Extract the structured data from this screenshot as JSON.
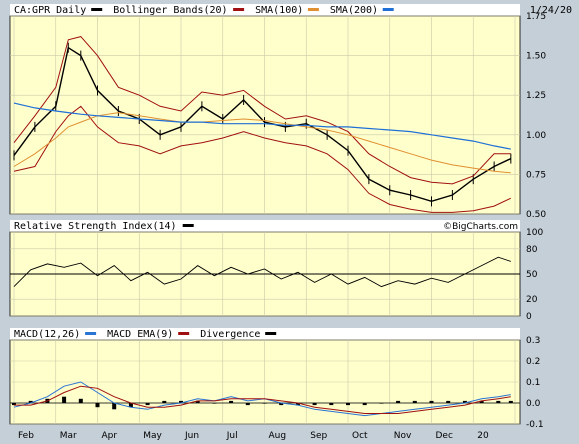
{
  "date": "1/24/20",
  "watermark": "©BigCharts.com",
  "colors": {
    "price": "#000000",
    "bollinger": "#a01010",
    "sma100": "#e09030",
    "sma200": "#1f6fd6",
    "rsi": "#000000",
    "macd": "#2a74d4",
    "macd_ema": "#a01010",
    "divergence": "#000000"
  },
  "legend_main": [
    {
      "label": "CA:GPR Daily",
      "color": "#000000"
    },
    {
      "label": "Bollinger Bands(20)",
      "color": "#a01010"
    },
    {
      "label": "SMA(100)",
      "color": "#e09030"
    },
    {
      "label": "SMA(200)",
      "color": "#1f6fd6"
    }
  ],
  "legend_rsi": [
    {
      "label": "Relative Strength Index(14)",
      "color": "#000000"
    }
  ],
  "legend_macd": [
    {
      "label": "MACD(12,26)",
      "color": "#2a74d4"
    },
    {
      "label": "MACD EMA(9)",
      "color": "#a01010"
    },
    {
      "label": "Divergence",
      "color": "#000000"
    }
  ],
  "x_labels": [
    "Feb",
    "Mar",
    "Apr",
    "May",
    "Jun",
    "Jul",
    "Aug",
    "Sep",
    "Oct",
    "Nov",
    "Dec",
    "20"
  ],
  "chart_data": [
    {
      "type": "line",
      "name": "price",
      "ylim": [
        0.5,
        1.75
      ],
      "yticks": [
        "1.75",
        "1.50",
        "1.25",
        "1.00",
        "0.75",
        "0.50"
      ],
      "ytick_values": [
        1.75,
        1.5,
        1.25,
        1.0,
        0.75,
        0.5
      ],
      "x_month_index": [
        0,
        0.5,
        1,
        1.3,
        1.6,
        2,
        2.5,
        3,
        3.5,
        4,
        4.5,
        5,
        5.5,
        6,
        6.5,
        7,
        7.5,
        8,
        8.5,
        9,
        9.5,
        10,
        10.5,
        11,
        11.5,
        11.9
      ],
      "series": [
        {
          "name": "CA:GPR Daily",
          "values": [
            0.87,
            1.05,
            1.18,
            1.55,
            1.5,
            1.28,
            1.15,
            1.1,
            1.0,
            1.05,
            1.18,
            1.1,
            1.22,
            1.08,
            1.05,
            1.07,
            1.0,
            0.9,
            0.72,
            0.65,
            0.62,
            0.58,
            0.62,
            0.72,
            0.8,
            0.85
          ]
        },
        {
          "name": "Bollinger upper",
          "values": [
            0.95,
            1.12,
            1.3,
            1.6,
            1.62,
            1.5,
            1.3,
            1.25,
            1.18,
            1.15,
            1.27,
            1.25,
            1.28,
            1.18,
            1.1,
            1.12,
            1.08,
            1.02,
            0.88,
            0.8,
            0.73,
            0.7,
            0.69,
            0.74,
            0.88,
            0.88
          ]
        },
        {
          "name": "Bollinger lower",
          "values": [
            0.77,
            0.8,
            1.02,
            1.12,
            1.18,
            1.05,
            0.95,
            0.93,
            0.88,
            0.93,
            0.95,
            0.98,
            1.02,
            0.98,
            0.95,
            0.93,
            0.88,
            0.78,
            0.63,
            0.56,
            0.53,
            0.51,
            0.51,
            0.52,
            0.55,
            0.6
          ]
        },
        {
          "name": "SMA(100)",
          "values": [
            0.8,
            0.88,
            0.98,
            1.05,
            1.08,
            1.12,
            1.14,
            1.12,
            1.1,
            1.08,
            1.08,
            1.09,
            1.1,
            1.09,
            1.07,
            1.05,
            1.03,
            1.0,
            0.96,
            0.92,
            0.88,
            0.84,
            0.81,
            0.79,
            0.77,
            0.76
          ]
        },
        {
          "name": "SMA(200)",
          "values": [
            1.2,
            1.17,
            1.15,
            1.14,
            1.13,
            1.12,
            1.11,
            1.1,
            1.09,
            1.08,
            1.08,
            1.07,
            1.07,
            1.07,
            1.06,
            1.06,
            1.05,
            1.05,
            1.04,
            1.03,
            1.02,
            1.0,
            0.98,
            0.96,
            0.93,
            0.91
          ]
        }
      ]
    },
    {
      "type": "line",
      "name": "rsi",
      "ylim": [
        0,
        100
      ],
      "yticks": [
        "100",
        "80",
        "50",
        "20",
        "0"
      ],
      "ytick_values": [
        100,
        80,
        50,
        20,
        0
      ],
      "reference_line": 50,
      "x_month_index": [
        0,
        0.4,
        0.8,
        1.2,
        1.6,
        2,
        2.4,
        2.8,
        3.2,
        3.6,
        4,
        4.4,
        4.8,
        5.2,
        5.6,
        6,
        6.4,
        6.8,
        7.2,
        7.6,
        8,
        8.4,
        8.8,
        9.2,
        9.6,
        10,
        10.4,
        10.8,
        11.2,
        11.6,
        11.9
      ],
      "series": [
        {
          "name": "RSI(14)",
          "values": [
            35,
            55,
            62,
            58,
            63,
            48,
            60,
            42,
            52,
            38,
            44,
            60,
            48,
            58,
            50,
            56,
            44,
            52,
            40,
            50,
            38,
            46,
            35,
            42,
            38,
            45,
            40,
            50,
            60,
            70,
            65
          ]
        }
      ]
    },
    {
      "type": "line",
      "name": "macd",
      "ylim": [
        -0.1,
        0.3
      ],
      "yticks": [
        "0.3",
        "0.2",
        "0.1",
        "0.0",
        "-0.1"
      ],
      "ytick_values": [
        0.3,
        0.2,
        0.1,
        0.0,
        -0.1
      ],
      "x_month_index": [
        0,
        0.4,
        0.8,
        1.2,
        1.6,
        2,
        2.4,
        2.8,
        3.2,
        3.6,
        4,
        4.4,
        4.8,
        5.2,
        5.6,
        6,
        6.4,
        6.8,
        7.2,
        7.6,
        8,
        8.4,
        8.8,
        9.2,
        9.6,
        10,
        10.4,
        10.8,
        11.2,
        11.6,
        11.9
      ],
      "series": [
        {
          "name": "MACD(12,26)",
          "values": [
            -0.02,
            0.0,
            0.03,
            0.08,
            0.1,
            0.05,
            0.0,
            -0.02,
            -0.03,
            -0.01,
            0.0,
            0.02,
            0.01,
            0.03,
            0.01,
            0.02,
            0.0,
            -0.01,
            -0.03,
            -0.04,
            -0.05,
            -0.06,
            -0.05,
            -0.04,
            -0.03,
            -0.02,
            -0.01,
            0.0,
            0.02,
            0.03,
            0.04
          ]
        },
        {
          "name": "MACD EMA(9)",
          "values": [
            -0.01,
            -0.01,
            0.01,
            0.05,
            0.08,
            0.07,
            0.03,
            0.0,
            -0.02,
            -0.02,
            -0.01,
            0.01,
            0.01,
            0.02,
            0.02,
            0.02,
            0.01,
            0.0,
            -0.02,
            -0.03,
            -0.04,
            -0.05,
            -0.05,
            -0.05,
            -0.04,
            -0.03,
            -0.02,
            -0.01,
            0.01,
            0.02,
            0.03
          ]
        }
      ]
    }
  ]
}
